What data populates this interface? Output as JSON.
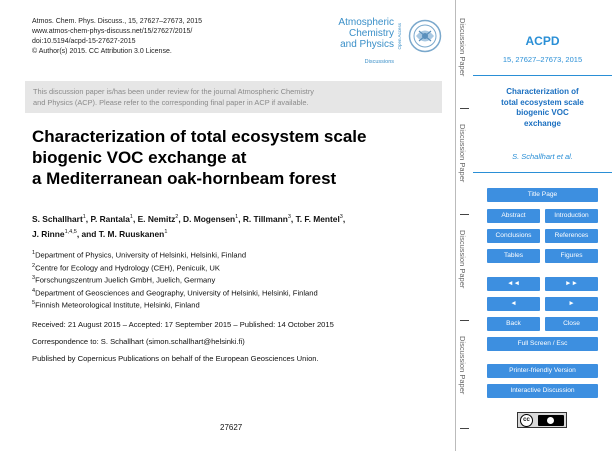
{
  "header": {
    "meta": [
      "Atmos. Chem. Phys. Discuss., 15, 27627–27673, 2015",
      "www.atmos-chem-phys-discuss.net/15/27627/2015/",
      "doi:10.5194/acpd-15-27627-2015",
      "© Author(s) 2015. CC Attribution 3.0 License."
    ],
    "logo_lines": [
      "Atmospheric",
      "Chemistry",
      "and Physics"
    ],
    "logo_sub": "Discussions",
    "open_access": "Open Access",
    "logo_icon": "egu-logo-icon"
  },
  "review_notice": [
    "This discussion paper is/has been under review for the journal Atmospheric Chemistry",
    "and Physics (ACP). Please refer to the corresponding final paper in ACP if available."
  ],
  "title_lines": [
    "Characterization of total ecosystem scale",
    "biogenic VOC exchange at",
    "a Mediterranean oak-hornbeam forest"
  ],
  "authors": [
    [
      {
        "name": "S. Schallhart",
        "sup": "1",
        "sep": ", "
      },
      {
        "name": "P. Rantala",
        "sup": "1",
        "sep": ", "
      },
      {
        "name": "E. Nemitz",
        "sup": "2",
        "sep": ", "
      },
      {
        "name": "D. Mogensen",
        "sup": "1",
        "sep": ", "
      },
      {
        "name": "R. Tillmann",
        "sup": "3",
        "sep": ", "
      },
      {
        "name": "T. F. Mentel",
        "sup": "3",
        "sep": ","
      }
    ],
    [
      {
        "name": "J. Rinne",
        "sup": "1,4,5",
        "sep": ", and "
      },
      {
        "name": "T. M. Ruuskanen",
        "sup": "1",
        "sep": ""
      }
    ]
  ],
  "affiliations": [
    {
      "num": "1",
      "text": "Department of Physics, University of Helsinki, Helsinki, Finland"
    },
    {
      "num": "2",
      "text": "Centre for Ecology and Hydrology (CEH), Penicuik, UK"
    },
    {
      "num": "3",
      "text": "Forschungszentrum Juelich GmbH, Juelich, Germany"
    },
    {
      "num": "4",
      "text": "Department of Geosciences and Geography, University of Helsinki, Helsinki, Finland"
    },
    {
      "num": "5",
      "text": "Finnish Meteorological Institute, Helsinki, Finland"
    }
  ],
  "received": "Received: 21 August 2015 – Accepted: 17 September 2015 – Published: 14 October 2015",
  "correspondence": "Correspondence to: S. Schallhart (simon.schallhart@helsinki.fi)",
  "published_by": "Published by Copernicus Publications on behalf of the European Geosciences Union.",
  "page_number": "27627",
  "strip_labels": [
    "Discussion Paper",
    "Discussion Paper",
    "Discussion Paper",
    "Discussion Paper"
  ],
  "panel": {
    "journal": "ACPD",
    "ref": "15, 27627–27673, 2015",
    "title_lines": [
      "Characterization of",
      "total ecosystem scale",
      "biogenic VOC",
      "exchange"
    ],
    "author": "S. Schallhart et al.",
    "buttons": {
      "title_page": "Title Page",
      "abstract": "Abstract",
      "introduction": "Introduction",
      "conclusions": "Conclusions",
      "references": "References",
      "tables": "Tables",
      "figures": "Figures",
      "first": "◄◄",
      "last": "►►",
      "prev": "◄",
      "next": "►",
      "back": "Back",
      "close": "Close",
      "fullscreen": "Full Screen / Esc",
      "printer": "Printer-friendly Version",
      "interactive": "Interactive Discussion"
    },
    "license_badge": "cc-by-license-icon"
  }
}
